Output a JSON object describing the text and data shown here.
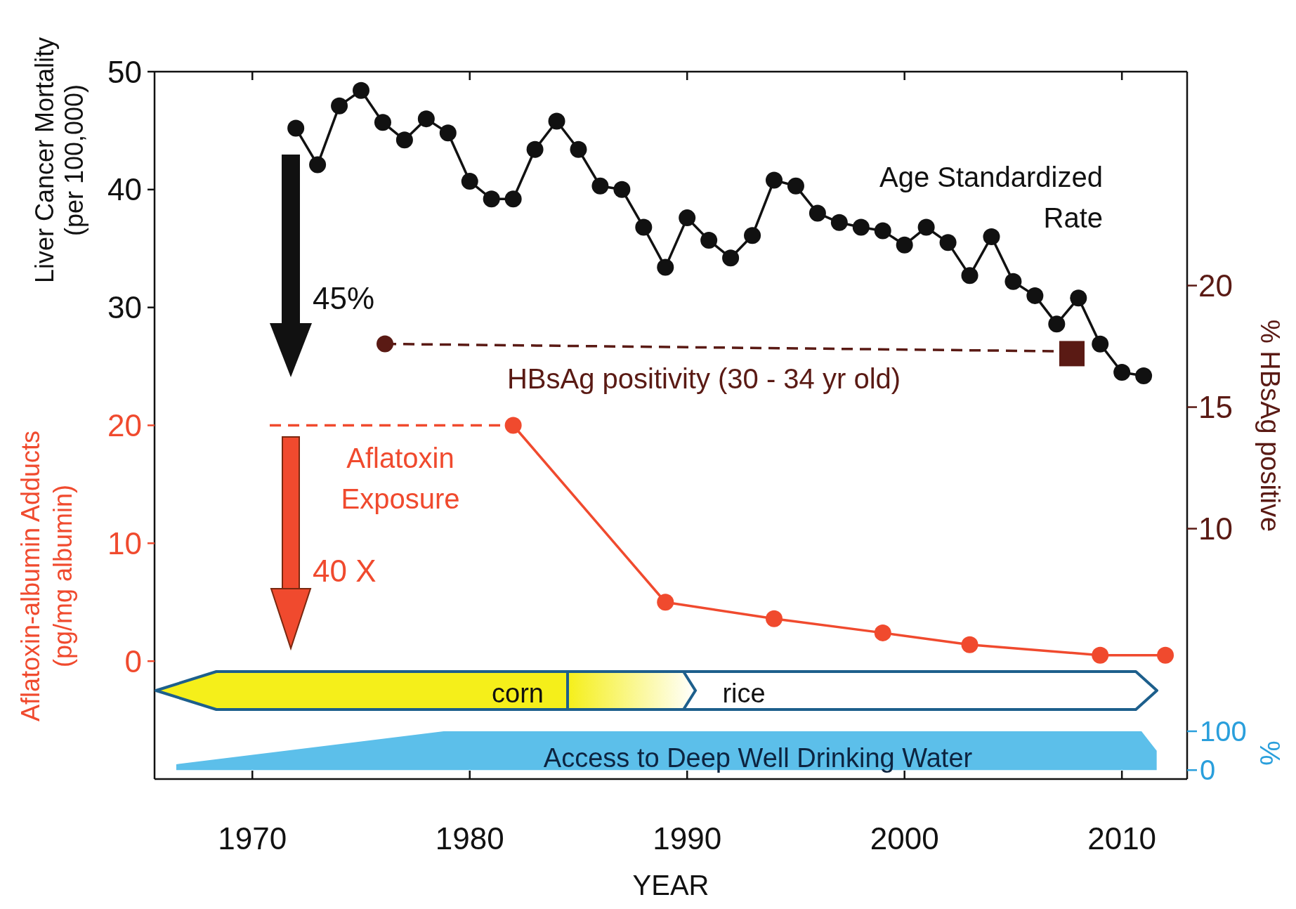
{
  "chart_data": {
    "type": "line",
    "xlabel": "YEAR",
    "ylabel": "Liver Cancer Mortality\n(per 100,000)",
    "y2label": "% HBsAg positive",
    "y3label": "%",
    "xlim": [
      1965.5,
      2013.0
    ],
    "xticks": [
      1970,
      1980,
      1990,
      2000,
      2010
    ],
    "ylim": [
      -10,
      50
    ],
    "yticks": [
      0,
      10,
      20,
      30,
      40,
      50
    ],
    "y2lim": [
      -0.3,
      28.8
    ],
    "y2ticks": [
      10,
      15,
      20
    ],
    "y3lim": [
      -23,
      1798
    ],
    "y3ticks": [
      0,
      100
    ],
    "series": [
      {
        "name": "Age Standardized\nRate",
        "color": "#111111",
        "marker": "circle",
        "x": [
          1972,
          1973,
          1974,
          1975,
          1976,
          1977,
          1978,
          1979,
          1980,
          1981,
          1982,
          1983,
          1984,
          1985,
          1986,
          1987,
          1988,
          1989,
          1990,
          1991,
          1992,
          1993,
          1994,
          1995,
          1996,
          1997,
          1998,
          1999,
          2000,
          2001,
          2002,
          2003,
          2004,
          2005,
          2006,
          2007,
          2008,
          2009,
          2010,
          2011
        ],
        "values": [
          45.2,
          42.1,
          47.1,
          48.4,
          45.7,
          44.2,
          46.0,
          44.8,
          40.7,
          39.2,
          39.2,
          43.4,
          45.8,
          43.4,
          40.3,
          40.0,
          36.8,
          33.4,
          37.6,
          35.7,
          34.2,
          36.1,
          40.8,
          40.3,
          38.0,
          37.2,
          36.8,
          36.5,
          35.3,
          36.8,
          35.5,
          32.7,
          36.0,
          32.2,
          31.0,
          28.6,
          30.8,
          26.9,
          24.5,
          24.2
        ]
      },
      {
        "color": "#f04a2e",
        "line_style": "dashed",
        "x": [
          1970.8,
          1982
        ],
        "values": [
          20,
          20
        ]
      },
      {
        "name": "Aflatoxin\nExposure",
        "color": "#f04a2e",
        "marker": "circle",
        "x": [
          1982,
          1989,
          1994,
          1999,
          2003,
          2009,
          2012
        ],
        "values": [
          20,
          5.0,
          3.6,
          2.4,
          1.4,
          0.5,
          0.5
        ]
      },
      {
        "name": "HBsAg positivity (30 - 34 yr old)",
        "axis": "y2",
        "color": "#5a1a14",
        "line_style": "dashed",
        "marker": "none",
        "x": [
          1976.1,
          2006.9
        ],
        "values": [
          17.6,
          17.3
        ]
      },
      {
        "type": "scatter",
        "axis": "y2",
        "color": "#5a1a14",
        "marker": "circle",
        "x": [
          1976.1
        ],
        "values": [
          17.6
        ]
      },
      {
        "type": "scatter",
        "axis": "y2",
        "color": "#5a1a14",
        "marker": "square",
        "x": [
          2007.7
        ],
        "values": [
          17.2
        ]
      },
      {
        "name": "Access to Deep Well Drinking Water",
        "type": "area",
        "axis": "y3",
        "color": "#5cbfea",
        "x": [
          1966.5,
          1978.8,
          2010.9,
          2011.6
        ],
        "values": [
          15,
          100,
          100,
          50
        ]
      }
    ],
    "annotations": [
      "45%",
      "40 X",
      "corn",
      "rice",
      "Aflatoxin-albumin Adducts\n(pg/mg albumin)"
    ]
  }
}
